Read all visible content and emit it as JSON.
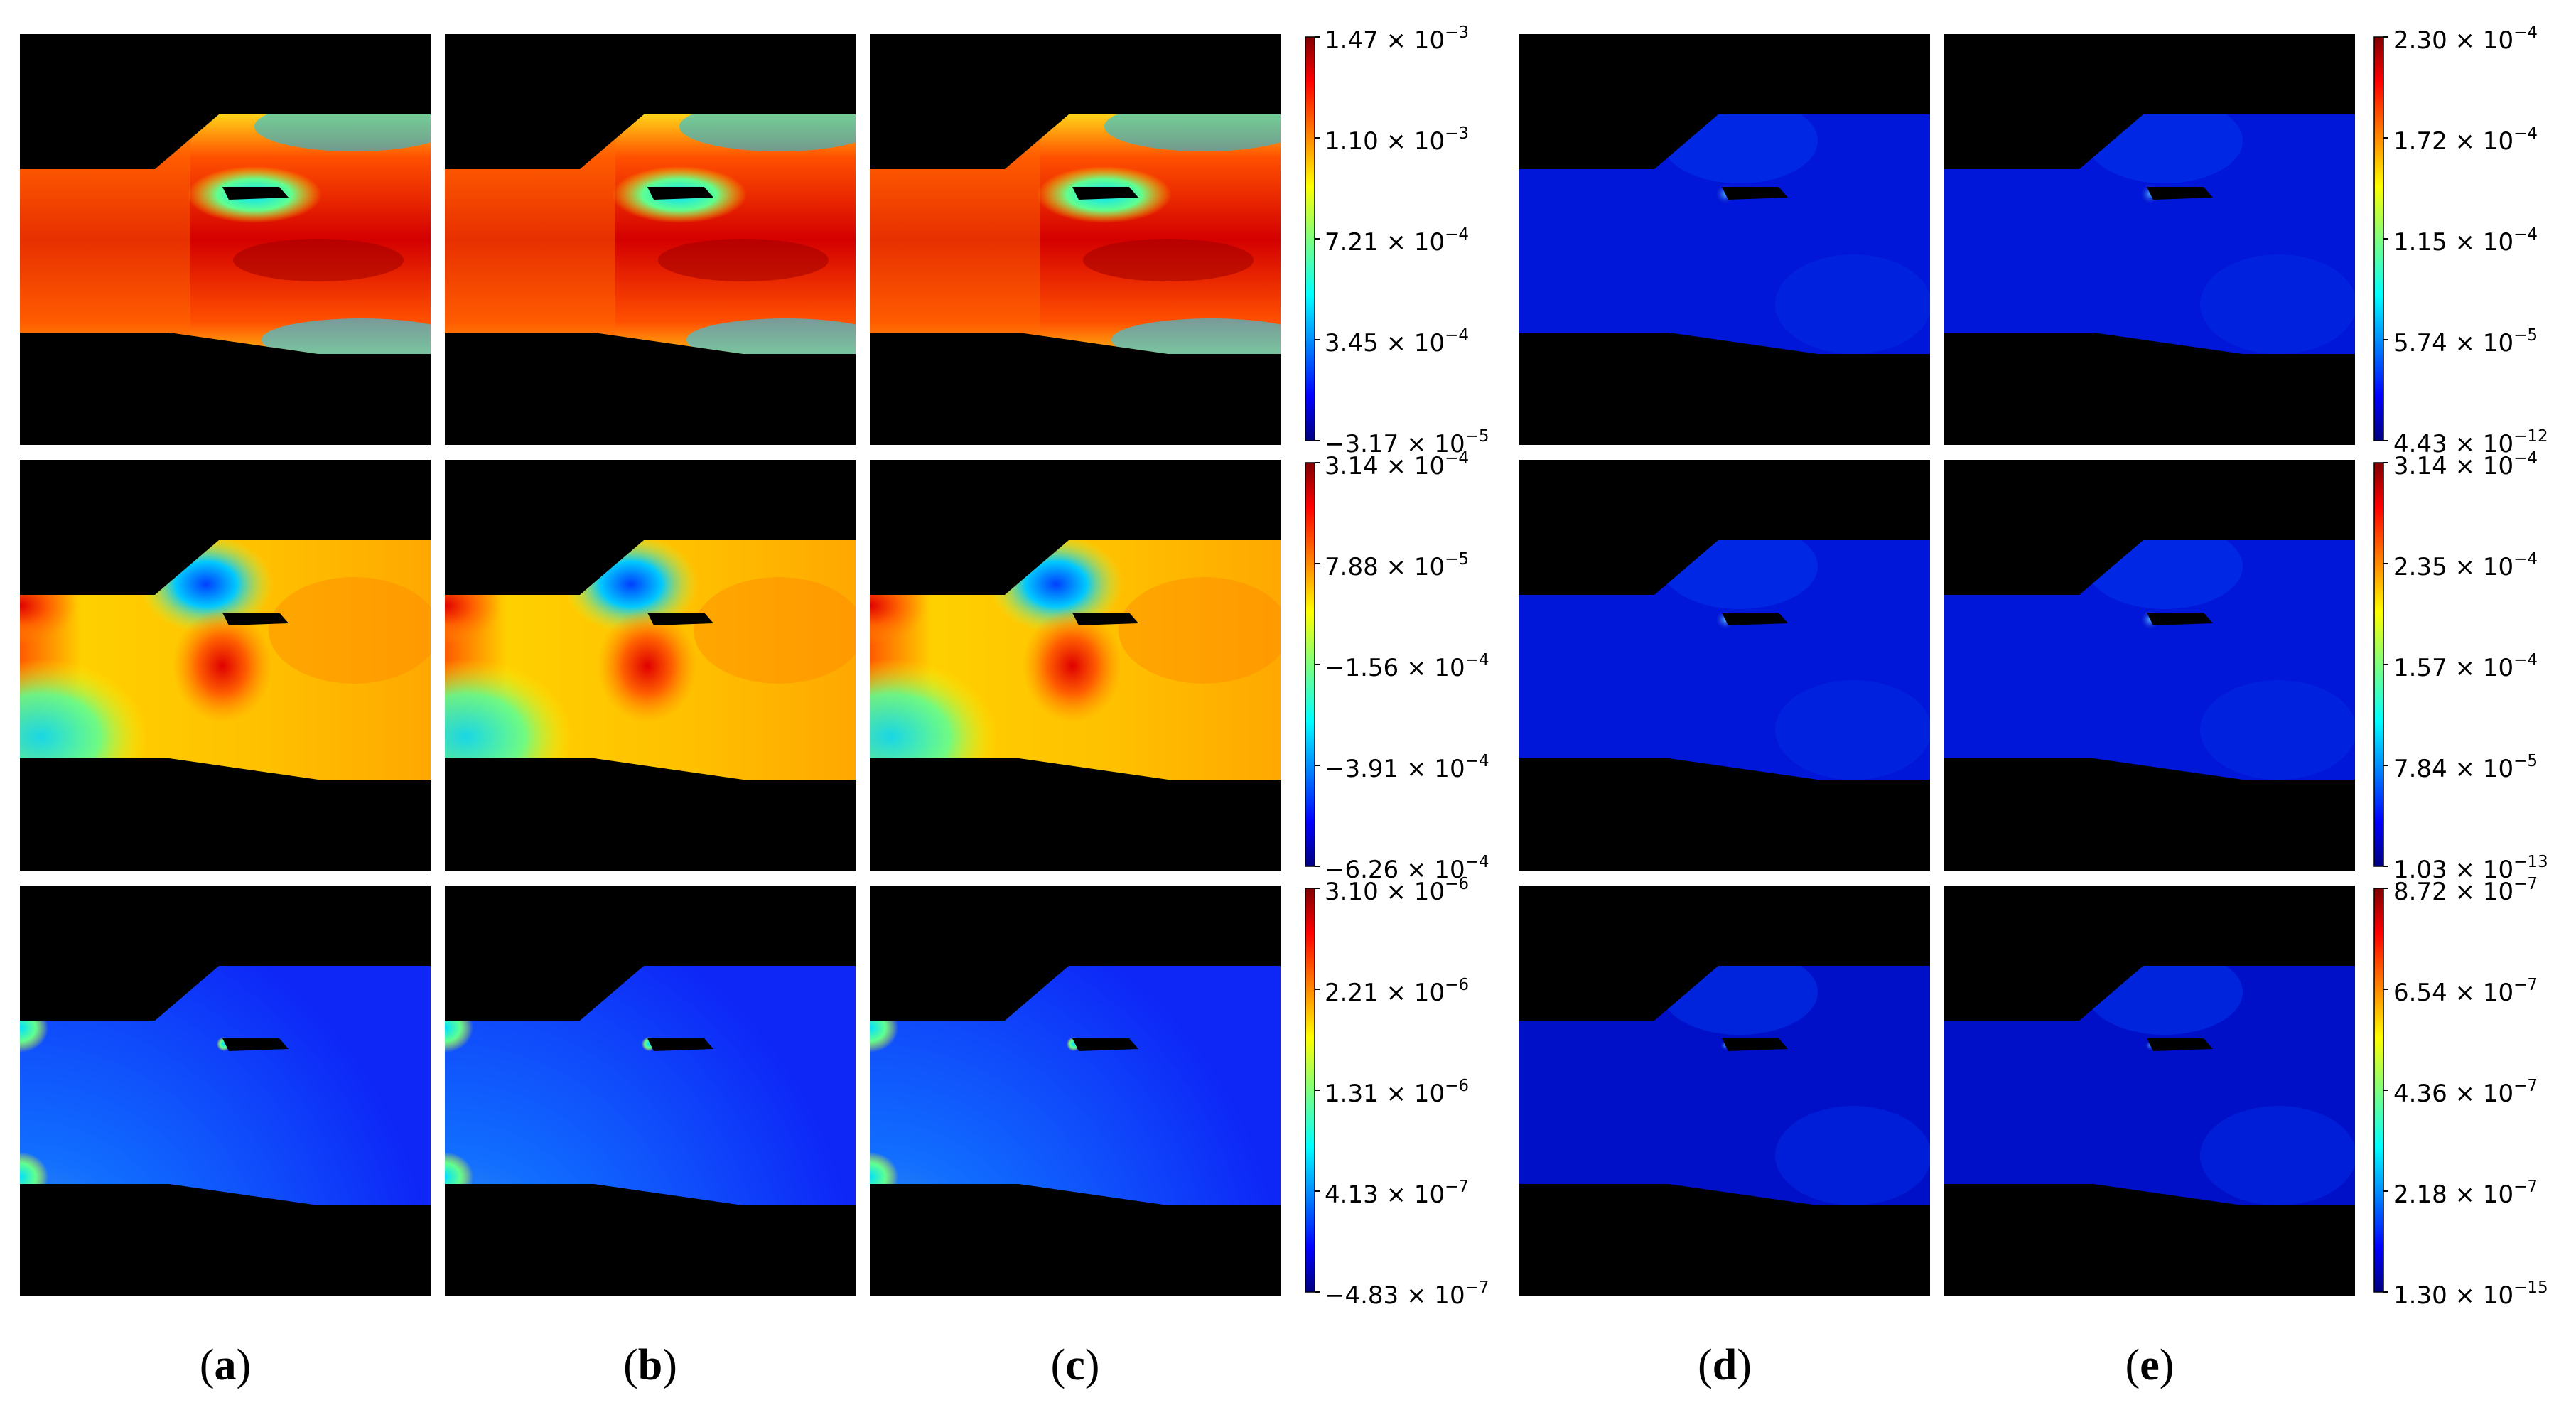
{
  "panel_labels": [
    "a",
    "b",
    "c",
    "d",
    "e"
  ],
  "colorbars": [
    {
      "group": "left",
      "row": 1,
      "ticks": [
        {
          "mant": "1.47",
          "exp": "−3"
        },
        {
          "mant": "1.10",
          "exp": "−3"
        },
        {
          "mant": "7.21",
          "exp": "−4"
        },
        {
          "mant": "3.45",
          "exp": "−4"
        },
        {
          "mant": "−3.17",
          "exp": "−5"
        }
      ]
    },
    {
      "group": "left",
      "row": 2,
      "ticks": [
        {
          "mant": "3.14",
          "exp": "−4"
        },
        {
          "mant": "7.88",
          "exp": "−5"
        },
        {
          "mant": "−1.56",
          "exp": "−4"
        },
        {
          "mant": "−3.91",
          "exp": "−4"
        },
        {
          "mant": "−6.26",
          "exp": "−4"
        }
      ]
    },
    {
      "group": "left",
      "row": 3,
      "ticks": [
        {
          "mant": "3.10",
          "exp": "−6"
        },
        {
          "mant": "2.21",
          "exp": "−6"
        },
        {
          "mant": "1.31",
          "exp": "−6"
        },
        {
          "mant": "4.13",
          "exp": "−7"
        },
        {
          "mant": "−4.83",
          "exp": "−7"
        }
      ]
    },
    {
      "group": "right",
      "row": 1,
      "ticks": [
        {
          "mant": "2.30",
          "exp": "−4"
        },
        {
          "mant": "1.72",
          "exp": "−4"
        },
        {
          "mant": "1.15",
          "exp": "−4"
        },
        {
          "mant": "5.74",
          "exp": "−5"
        },
        {
          "mant": "4.43",
          "exp": "−12"
        }
      ]
    },
    {
      "group": "right",
      "row": 2,
      "ticks": [
        {
          "mant": "3.14",
          "exp": "−4"
        },
        {
          "mant": "2.35",
          "exp": "−4"
        },
        {
          "mant": "1.57",
          "exp": "−4"
        },
        {
          "mant": "7.84",
          "exp": "−5"
        },
        {
          "mant": "1.03",
          "exp": "−13"
        }
      ]
    },
    {
      "group": "right",
      "row": 3,
      "ticks": [
        {
          "mant": "8.72",
          "exp": "−7"
        },
        {
          "mant": "6.54",
          "exp": "−7"
        },
        {
          "mant": "4.36",
          "exp": "−7"
        },
        {
          "mant": "2.18",
          "exp": "−7"
        },
        {
          "mant": "1.30",
          "exp": "−15"
        }
      ]
    }
  ],
  "colors": {
    "background": "#000000",
    "jet": [
      "#00007f",
      "#0000ff",
      "#007fff",
      "#00ffff",
      "#7fff7f",
      "#ffff00",
      "#ff7f00",
      "#ff0000",
      "#7f0000"
    ]
  }
}
